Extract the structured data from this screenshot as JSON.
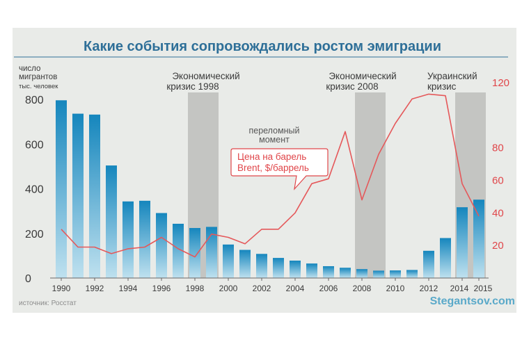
{
  "colors": {
    "background": "#e9ebe8",
    "title": "#2e6f98",
    "title_rule": "#2e6f98",
    "bar_top": "#1586bd",
    "bar_bottom": "#bfe1ef",
    "crisis_band": "#b7b8b6",
    "price_line": "#e5585a",
    "price_label": "#e0464a",
    "axis_text": "#3a3a3a",
    "source_text": "#8c8c8c",
    "watermark": "#5aa9c9"
  },
  "title": "Какие события сопровождались ростом эмиграции",
  "source": "источник: Росстат",
  "watermark": "Stegantsov.com",
  "chart_data": {
    "type": "bar",
    "left_axis": {
      "label_line1": "число",
      "label_line2": "мигрантов",
      "label_line3": "тыс. человек",
      "ticks": [
        "0",
        "200",
        "400",
        "600",
        "800"
      ],
      "ylim": [
        0,
        850
      ]
    },
    "right_axis": {
      "ticks": [
        "20",
        "40",
        "60",
        "80",
        "120"
      ],
      "ylim": [
        0,
        125
      ]
    },
    "x": [
      1990,
      1991,
      1992,
      1993,
      1994,
      1995,
      1996,
      1997,
      1998,
      1999,
      2000,
      2001,
      2002,
      2003,
      2004,
      2005,
      2006,
      2007,
      2008,
      2009,
      2010,
      2011,
      2012,
      2013,
      2014,
      2015
    ],
    "x_tick_labels": [
      "1990",
      "1992",
      "1994",
      "1996",
      "1998",
      "2000",
      "2002",
      "2004",
      "2006",
      "2008",
      "2010",
      "2012",
      "2014",
      "2015"
    ],
    "series": [
      {
        "kind": "bar",
        "values": [
          796,
          736,
          732,
          504,
          343,
          346,
          291,
          243,
          224,
          229,
          150,
          126,
          108,
          90,
          78,
          65,
          53,
          46,
          40,
          33,
          34,
          36,
          122,
          179,
          317,
          351
        ]
      },
      {
        "kind": "line",
        "name": "Цена на барель Brent, $/баррель",
        "values": [
          30,
          19,
          19,
          15,
          18,
          19,
          25,
          18,
          13,
          27,
          25,
          21,
          30,
          30,
          40,
          58,
          61,
          90,
          48,
          76,
          95,
          110,
          113,
          112,
          58,
          38
        ]
      }
    ],
    "crisis_bands": [
      {
        "label_line1": "Экономический",
        "label_line2": "кризис 1998",
        "from": 1997.5,
        "to": 1999.5
      },
      {
        "label_line1": "Экономический",
        "label_line2": "кризис 2008",
        "from": 2007.5,
        "to": 2009.5
      },
      {
        "label_line1": "Украинский",
        "label_line2": "кризис",
        "from": 2013.5,
        "to": 2015.5
      }
    ],
    "annotations": {
      "turning_point_line1": "переломный",
      "turning_point_line2": "момент",
      "price_label_line1": "Цена на барель",
      "price_label_line2": "Brent, $/баррель"
    }
  }
}
